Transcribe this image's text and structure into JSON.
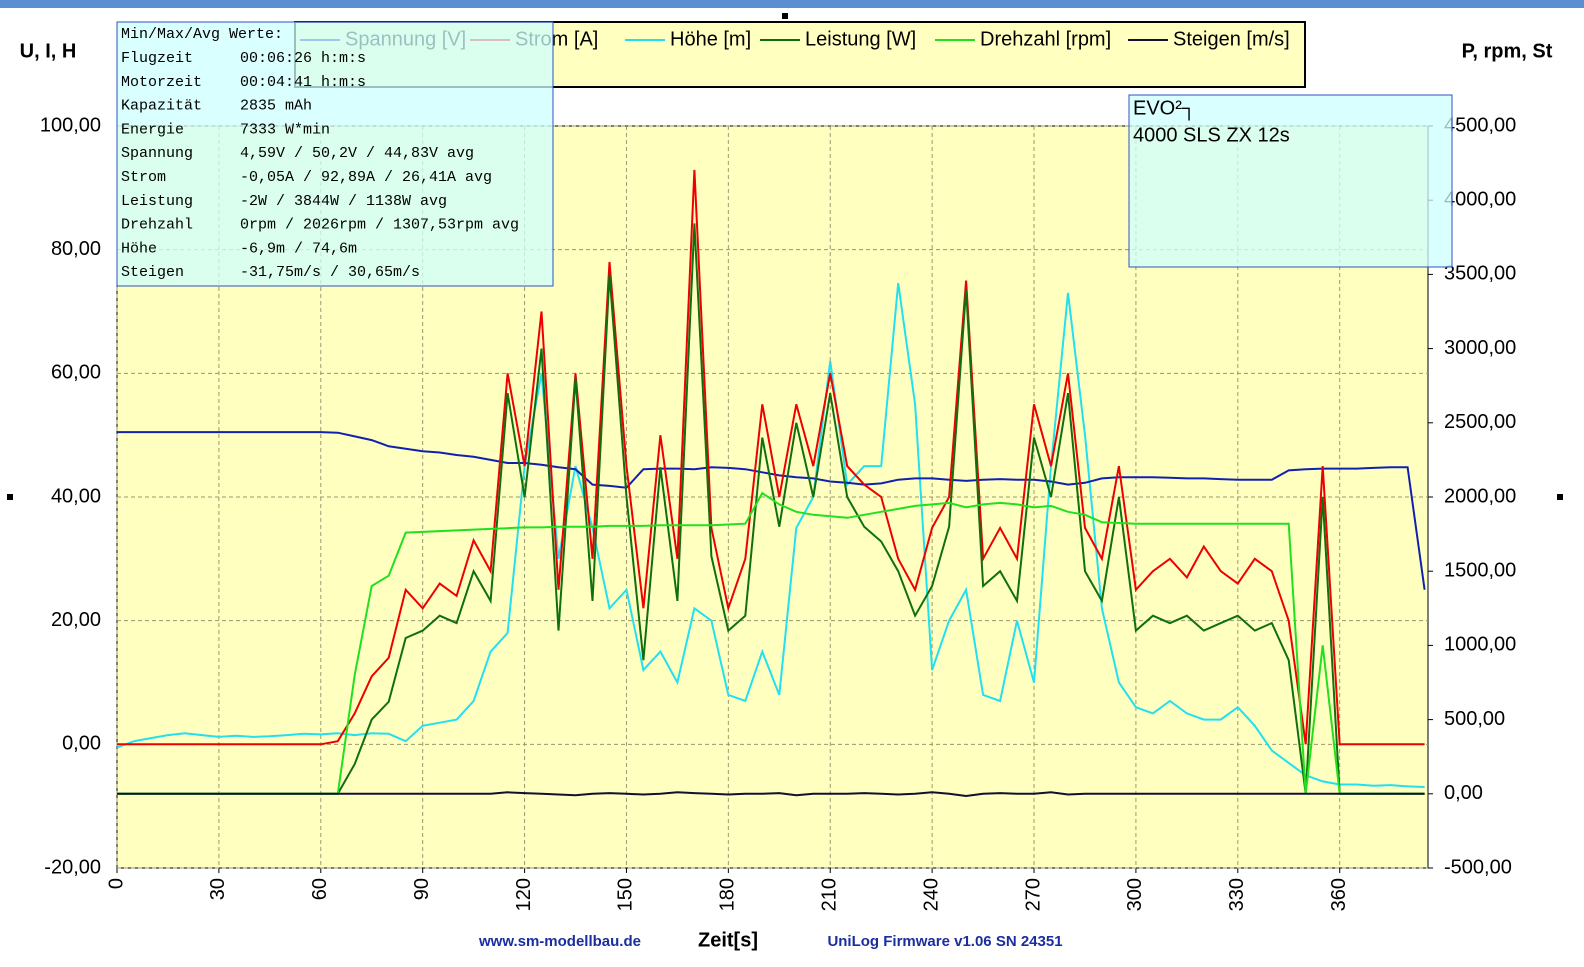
{
  "chart_data": {
    "type": "line",
    "y_label": "U, I, H",
    "y2_label": "P, rpm, St",
    "x_label": "Zeit[s]",
    "footer_left": "www.sm-modellbau.de",
    "footer_right": "UniLog Firmware v1.06 SN 24351",
    "annotation": [
      "EVO²┐",
      "4000 SLS ZX 12s"
    ],
    "info_box": {
      "title": "Min/Max/Avg Werte:",
      "rows": [
        [
          "Flugzeit",
          "00:06:26 h:m:s"
        ],
        [
          "Motorzeit",
          "00:04:41 h:m:s"
        ],
        [
          "Kapazität",
          "2835 mAh"
        ],
        [
          "Energie",
          "7333 W*min"
        ],
        [
          "Spannung",
          "4,59V / 50,2V / 44,83V avg"
        ],
        [
          "Strom",
          "-0,05A / 92,89A / 26,41A avg"
        ],
        [
          "Leistung",
          "-2W / 3844W / 1138W avg"
        ],
        [
          "Drehzahl",
          "0rpm / 2026rpm / 1307,53rpm avg"
        ],
        [
          "Höhe",
          "-6,9m / 74,6m"
        ],
        [
          "Steigen",
          "-31,75m/s / 30,65m/s"
        ]
      ]
    },
    "grid": true,
    "xlim": [
      0,
      386
    ],
    "xticks": [
      0,
      30,
      60,
      90,
      120,
      150,
      180,
      210,
      240,
      270,
      300,
      330,
      360
    ],
    "ylim": [
      -20,
      100
    ],
    "yticks": [
      {
        "value": -20,
        "label": "-20,00"
      },
      {
        "value": 0,
        "label": "0,00"
      },
      {
        "value": 20,
        "label": "20,00"
      },
      {
        "value": 40,
        "label": "40,00"
      },
      {
        "value": 60,
        "label": "60,00"
      },
      {
        "value": 80,
        "label": "80,00"
      },
      {
        "value": 100,
        "label": "100,00"
      }
    ],
    "y2lim": [
      -500,
      4500
    ],
    "y2ticks": [
      {
        "value": -500,
        "label": "-500,00"
      },
      {
        "value": 0,
        "label": "0,00"
      },
      {
        "value": 500,
        "label": "500,00"
      },
      {
        "value": 1000,
        "label": "1000,00"
      },
      {
        "value": 1500,
        "label": "1500,00"
      },
      {
        "value": 2000,
        "label": "2000,00"
      },
      {
        "value": 2500,
        "label": "2500,00"
      },
      {
        "value": 3000,
        "label": "3000,00"
      },
      {
        "value": 3500,
        "label": "3500,00"
      },
      {
        "value": 4000,
        "label": "4000,00"
      },
      {
        "value": 4500,
        "label": "4500,00"
      }
    ],
    "x": [
      0,
      5,
      10,
      15,
      20,
      25,
      30,
      35,
      40,
      45,
      50,
      55,
      60,
      65,
      70,
      75,
      80,
      85,
      90,
      95,
      100,
      105,
      110,
      115,
      120,
      125,
      130,
      135,
      140,
      145,
      150,
      155,
      160,
      165,
      170,
      175,
      180,
      185,
      190,
      195,
      200,
      205,
      210,
      215,
      220,
      225,
      230,
      235,
      240,
      245,
      250,
      255,
      260,
      265,
      270,
      275,
      280,
      285,
      290,
      295,
      300,
      305,
      310,
      315,
      320,
      325,
      330,
      335,
      340,
      345,
      350,
      355,
      360,
      365,
      370,
      375,
      380,
      385
    ],
    "series": [
      {
        "name": "Höhe [m]",
        "color": "#22e0f0",
        "axis": "y",
        "values": [
          -0.5,
          0.5,
          1,
          1.5,
          1.8,
          1.5,
          1.2,
          1.4,
          1.2,
          1.3,
          1.5,
          1.7,
          1.6,
          1.8,
          1.5,
          1.8,
          1.7,
          0.5,
          3,
          3.5,
          4,
          7,
          15,
          18,
          45,
          60,
          30,
          45,
          35,
          22,
          25,
          12,
          15,
          10,
          22,
          20,
          8,
          7,
          15,
          8,
          35,
          40,
          62,
          42,
          45,
          45,
          74.6,
          55,
          12,
          20,
          25,
          8,
          7,
          20,
          10,
          45,
          73,
          50,
          22,
          10,
          6,
          5,
          7,
          5,
          4,
          4,
          6,
          3,
          -1,
          -3,
          -5,
          -6,
          -6.5,
          -6.5,
          -6.7,
          -6.6,
          -6.8,
          -6.9
        ]
      },
      {
        "name": "Spannung [V]",
        "color": "#1020b0",
        "axis": "y",
        "values": [
          50.5,
          50.5,
          50.5,
          50.5,
          50.5,
          50.5,
          50.5,
          50.5,
          50.5,
          50.5,
          50.5,
          50.5,
          50.5,
          50.4,
          49.8,
          49.2,
          48.2,
          47.8,
          47.4,
          47.2,
          46.8,
          46.5,
          46,
          45.5,
          45.5,
          45.2,
          44.8,
          44.5,
          42,
          41.8,
          41.5,
          44.5,
          44.6,
          44.6,
          44.5,
          44.8,
          44.7,
          44.5,
          44,
          43.5,
          43.2,
          43,
          42.5,
          42.3,
          42,
          42.2,
          42.8,
          43,
          43,
          42.8,
          42.6,
          42.8,
          42.9,
          42.8,
          42.8,
          42.5,
          42,
          42.3,
          43,
          43.2,
          43.2,
          43.2,
          43.1,
          43,
          43,
          42.9,
          42.8,
          42.8,
          42.8,
          44.3,
          44.5,
          44.6,
          44.6,
          44.6,
          44.7,
          44.8,
          44.8,
          25
        ]
      },
      {
        "name": "Strom [A]",
        "color": "#ee0000",
        "axis": "y",
        "values": [
          0,
          0,
          0,
          0,
          0,
          0,
          0,
          0,
          0,
          0,
          0,
          0,
          0,
          0.5,
          5,
          11,
          14,
          25,
          22,
          26,
          24,
          33,
          28,
          60,
          45,
          70,
          25,
          60,
          30,
          78,
          45,
          22,
          50,
          30,
          92.9,
          35,
          22,
          30,
          55,
          40,
          55,
          45,
          60,
          45,
          42,
          40,
          30,
          25,
          35,
          40,
          75,
          30,
          35,
          30,
          55,
          45,
          60,
          35,
          30,
          45,
          25,
          28,
          30,
          27,
          32,
          28,
          26,
          30,
          28,
          20,
          0,
          45,
          0,
          0,
          0,
          0,
          0,
          0
        ]
      },
      {
        "name": "Leistung [W]",
        "color": "#107010",
        "axis": "y2",
        "values": [
          0,
          0,
          0,
          0,
          0,
          0,
          0,
          0,
          0,
          0,
          0,
          0,
          0,
          0,
          200,
          500,
          620,
          1050,
          1100,
          1200,
          1150,
          1500,
          1300,
          2700,
          2000,
          3000,
          1100,
          2800,
          1300,
          3500,
          2000,
          900,
          2200,
          1300,
          3844,
          1600,
          1100,
          1200,
          2400,
          1800,
          2500,
          2000,
          2700,
          2000,
          1800,
          1700,
          1500,
          1200,
          1400,
          1800,
          3400,
          1400,
          1500,
          1300,
          2400,
          2000,
          2700,
          1500,
          1300,
          2000,
          1100,
          1200,
          1150,
          1200,
          1100,
          1150,
          1200,
          1100,
          1150,
          900,
          0,
          2000,
          0,
          0,
          0,
          0,
          0,
          0
        ]
      },
      {
        "name": "Drehzahl [rpm]",
        "color": "#20e020",
        "axis": "y2",
        "values": [
          0,
          0,
          0,
          0,
          0,
          0,
          0,
          0,
          0,
          0,
          0,
          0,
          0,
          0,
          800,
          1400,
          1470,
          1760,
          1765,
          1770,
          1775,
          1780,
          1785,
          1790,
          1795,
          1795,
          1800,
          1800,
          1800,
          1805,
          1805,
          1805,
          1810,
          1810,
          1810,
          1810,
          1815,
          1820,
          2026,
          1950,
          1900,
          1880,
          1870,
          1860,
          1880,
          1900,
          1920,
          1940,
          1950,
          1960,
          1930,
          1950,
          1960,
          1950,
          1930,
          1940,
          1900,
          1880,
          1830,
          1825,
          1820,
          1820,
          1820,
          1820,
          1820,
          1820,
          1820,
          1820,
          1820,
          1820,
          0,
          1000,
          0,
          0,
          0,
          0,
          0,
          0
        ]
      },
      {
        "name": "Steigen [m/s]",
        "color": "#101030",
        "axis": "y2",
        "values": [
          0,
          0,
          0,
          0,
          0,
          0,
          0,
          0,
          0,
          0,
          0,
          0,
          0,
          0,
          0,
          0,
          0,
          0,
          0,
          0,
          0,
          0,
          0,
          10,
          5,
          0,
          -5,
          -10,
          0,
          5,
          0,
          -5,
          0,
          10,
          5,
          0,
          -5,
          0,
          0,
          5,
          -10,
          0,
          0,
          0,
          5,
          0,
          -5,
          0,
          10,
          0,
          -15,
          0,
          5,
          0,
          0,
          10,
          -5,
          0,
          0,
          0,
          0,
          0,
          0,
          0,
          0,
          0,
          0,
          0,
          0,
          0,
          0,
          0,
          0,
          0,
          0,
          0,
          0,
          0
        ]
      }
    ]
  }
}
